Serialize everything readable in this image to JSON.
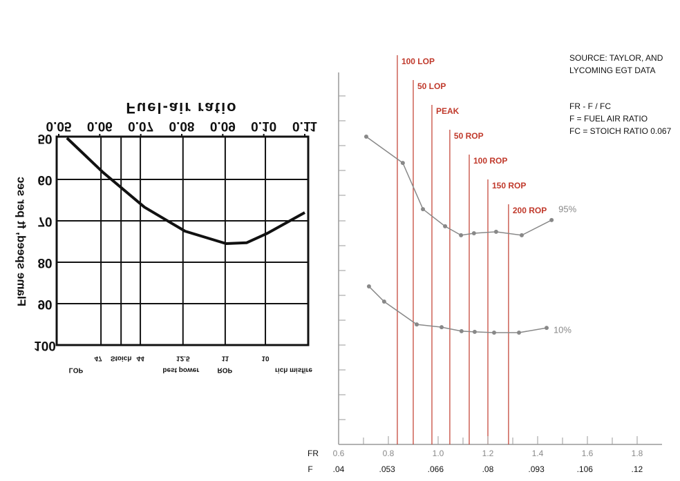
{
  "chart_data": [
    {
      "type": "line",
      "title": "Fuel-air ratio",
      "y_label": "Flame speed, ft per sec",
      "x": [
        0.052,
        0.0608,
        0.0709,
        0.0808,
        0.0908,
        0.0958,
        0.1009,
        0.11
      ],
      "values": [
        50,
        58.3,
        66.7,
        72.5,
        75.5,
        75.3,
        73,
        68
      ],
      "color": "#111111",
      "xlim": [
        0.05,
        0.11
      ],
      "xticks": [
        0.05,
        0.06,
        0.07,
        0.08,
        0.09,
        {
          "value": 0.1,
          "label": "0.10"
        },
        0.11
      ],
      "ylim": [
        50,
        100
      ],
      "yticks": [
        50,
        60,
        70,
        80,
        90,
        100
      ],
      "y_reversed": true,
      "grid": true,
      "markers": [
        {
          "x": 0.0603,
          "label": "47"
        },
        {
          "x": 0.0652,
          "label": "Stoich"
        },
        {
          "x": 0.0699,
          "label": "44"
        },
        {
          "x": 0.0803,
          "label": "12.5"
        },
        {
          "x": 0.0906,
          "label": "11"
        },
        {
          "x": 0.1004,
          "label": "10"
        }
      ],
      "zones": [
        {
          "x": 0.0542,
          "label": "LOP"
        },
        {
          "x": 0.0798,
          "label": "best power"
        },
        {
          "x": 0.0905,
          "label": "ROP"
        },
        {
          "x": 0.1073,
          "label": "rich misfire"
        }
      ]
    },
    {
      "type": "scatter",
      "x_label": "FR",
      "x2_label": "F",
      "xlim": [
        0.6,
        1.9
      ],
      "xticks": [
        0.6,
        0.8,
        {
          "value": 1,
          "label": "1.0"
        },
        1.2,
        1.4,
        1.6,
        1.8
      ],
      "x2lim": [
        0.04,
        0.1267
      ],
      "x2ticks": [
        {
          "value": 0.04,
          "label": ".04"
        },
        {
          "value": 0.053,
          "label": ".053"
        },
        {
          "value": 0.066,
          "label": ".066"
        },
        {
          "value": 0.08,
          "label": ".08"
        },
        {
          "value": 0.093,
          "label": ".093"
        },
        {
          "value": 0.106,
          "label": ".106"
        },
        {
          "value": 0.12,
          "label": ".12"
        }
      ],
      "ylim": [
        0,
        15
      ],
      "series": [
        {
          "name": "95%",
          "color": "#888888",
          "x": [
            0.711,
            0.858,
            0.939,
            1.028,
            1.092,
            1.144,
            1.233,
            1.336,
            1.456
          ],
          "values": [
            12.39,
            11.33,
            9.47,
            8.78,
            8.42,
            8.5,
            8.56,
            8.42,
            9.03
          ]
        },
        {
          "name": "10%",
          "color": "#888888",
          "x": [
            0.722,
            0.783,
            0.914,
            1.014,
            1.094,
            1.147,
            1.225,
            1.325,
            1.436
          ],
          "values": [
            6.36,
            5.75,
            4.83,
            4.72,
            4.56,
            4.53,
            4.5,
            4.5,
            4.69
          ]
        }
      ],
      "lines_color": "#c0392b",
      "lines": [
        {
          "x": 0.836,
          "label": "100 LOP"
        },
        {
          "x": 0.9,
          "label": "50 LOP"
        },
        {
          "x": 0.975,
          "label": "PEAK"
        },
        {
          "x": 1.047,
          "label": "50 ROP"
        },
        {
          "x": 1.125,
          "label": "100 ROP"
        },
        {
          "x": 1.2,
          "label": "150 ROP"
        },
        {
          "x": 1.283,
          "label": "200 ROP"
        }
      ],
      "notes": [
        "SOURCE: TAYLOR, AND",
        "LYCOMING EGT DATA",
        "FR - F / FC",
        "F = FUEL AIR RATIO",
        "FC = STOICH RATIO 0.067"
      ]
    }
  ]
}
